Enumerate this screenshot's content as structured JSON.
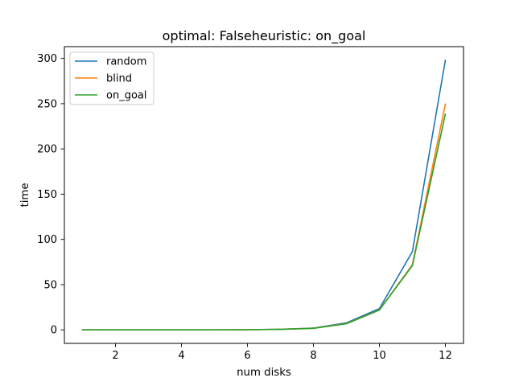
{
  "chart_data": {
    "type": "line",
    "title": "optimal: Falseheuristic: on_goal",
    "xlabel": "num disks",
    "ylabel": "time",
    "xlim": [
      0.45,
      12.55
    ],
    "ylim": [
      -14.9,
      313.0
    ],
    "xticks": [
      2,
      4,
      6,
      8,
      10,
      12
    ],
    "yticks": [
      0,
      50,
      100,
      150,
      200,
      250,
      300
    ],
    "x": [
      1,
      2,
      3,
      4,
      5,
      6,
      7,
      8,
      9,
      10,
      11,
      12
    ],
    "series": [
      {
        "name": "random",
        "color": "#1f77b4",
        "values": [
          0.0,
          0.0,
          0.0,
          0.0,
          0.1,
          0.2,
          0.7,
          2.0,
          7.8,
          23.5,
          86.5,
          298.0
        ]
      },
      {
        "name": "blind",
        "color": "#ff7f0e",
        "values": [
          0.0,
          0.0,
          0.0,
          0.0,
          0.1,
          0.2,
          0.6,
          1.8,
          7.0,
          22.0,
          72.0,
          249.5
        ]
      },
      {
        "name": "on_goal",
        "color": "#2ca02c",
        "values": [
          0.0,
          0.0,
          0.0,
          0.0,
          0.1,
          0.2,
          0.6,
          1.7,
          6.8,
          22.0,
          71.0,
          238.5
        ]
      }
    ],
    "grid": false,
    "legend_position": "top-left"
  }
}
